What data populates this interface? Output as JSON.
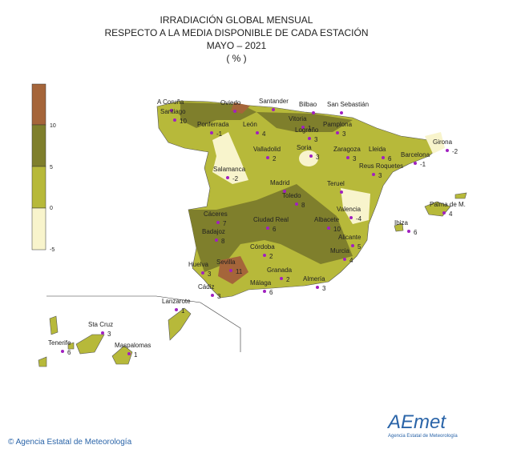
{
  "header": {
    "title_lines": [
      "IRRADIACIÓN  GLOBAL MENSUAL",
      "RESPECTO A LA MEDIA DISPONIBLE DE CADA ESTACIÓN",
      "MAYO – 2021",
      "( % )"
    ]
  },
  "legend": {
    "labels": [
      "10",
      "5",
      "0",
      "-5"
    ]
  },
  "stations": [
    {
      "name": "A Coruña"
    },
    {
      "name": "Santiago",
      "value": "10"
    },
    {
      "name": "Oviedo"
    },
    {
      "name": "Santander"
    },
    {
      "name": "Bilbao"
    },
    {
      "name": "San Sebastián"
    },
    {
      "name": "Vitoria",
      "value": "1"
    },
    {
      "name": "Pamplona",
      "value": "3"
    },
    {
      "name": "Logroño",
      "value": "3"
    },
    {
      "name": "Ponferrada",
      "value": "-1"
    },
    {
      "name": "León",
      "value": "4"
    },
    {
      "name": "Valladolid",
      "value": "2"
    },
    {
      "name": "Soria",
      "value": "3"
    },
    {
      "name": "Zaragoza",
      "value": "3"
    },
    {
      "name": "Lleida",
      "value": "6"
    },
    {
      "name": "Girona",
      "value": "-2"
    },
    {
      "name": "Barcelona",
      "value": "-1"
    },
    {
      "name": "Reus Roquetes",
      "value": "3"
    },
    {
      "name": "Salamanca",
      "value": "-2"
    },
    {
      "name": "Madrid"
    },
    {
      "name": "Toledo",
      "value": "8"
    },
    {
      "name": "Teruel"
    },
    {
      "name": "Valencia",
      "value": "-4"
    },
    {
      "name": "Palma de M.",
      "value": "4"
    },
    {
      "name": "Ibiza",
      "value": "6"
    },
    {
      "name": "Cáceres",
      "value": "7"
    },
    {
      "name": "Ciudad Real",
      "value": "6"
    },
    {
      "name": "Albacete",
      "value": "10"
    },
    {
      "name": "Badajoz",
      "value": "8"
    },
    {
      "name": "Alicante",
      "value": "5"
    },
    {
      "name": "Córdoba",
      "value": "2"
    },
    {
      "name": "Murcia",
      "value": "4"
    },
    {
      "name": "Huelva",
      "value": "3"
    },
    {
      "name": "Sevilla",
      "value": "11"
    },
    {
      "name": "Granada",
      "value": "2"
    },
    {
      "name": "Almería",
      "value": "3"
    },
    {
      "name": "Málaga",
      "value": "6"
    },
    {
      "name": "Cádiz",
      "value": "3"
    },
    {
      "name": "Lanzarote",
      "value": "1"
    },
    {
      "name": "Sta Cruz",
      "value": "3"
    },
    {
      "name": "Tenerife",
      "value": "6"
    },
    {
      "name": "Maspalomas",
      "value": "1"
    }
  ],
  "footer": {
    "copyright": "© Agencia Estatal de Meteorología",
    "logo": "AEmet",
    "logo_subtitle": "Agencia Estatal de Meteorología"
  }
}
